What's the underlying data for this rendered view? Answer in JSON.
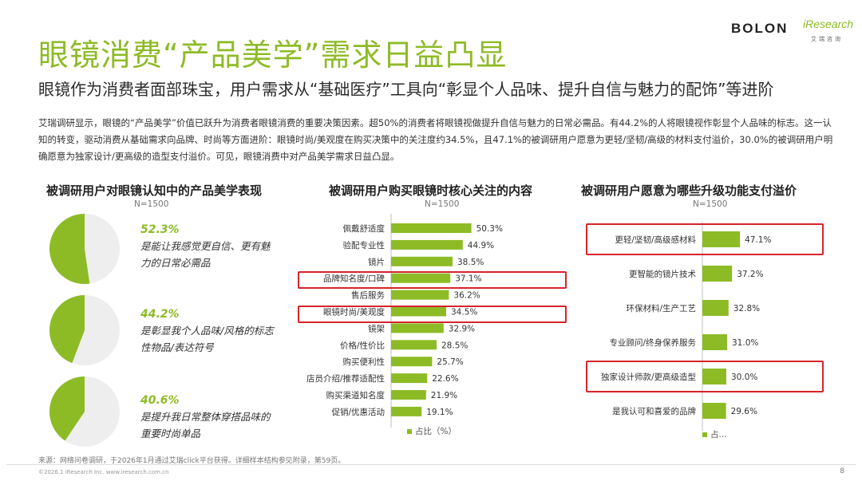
{
  "logo": {
    "brand": "BOLON",
    "partner": "iResearch",
    "partner_sub": "艾瑞咨询"
  },
  "title": "眼镜消费“产品美学”需求日益凸显",
  "subtitle": "眼镜作为消费者面部珠宝，用户需求从“基础医疗”工具向“彰显个人品味、提升自信与魅力的配饰”等进阶",
  "intro": "艾瑞调研显示，眼镜的“产品美学”价值已跃升为消费者眼镜消费的重要决策因素。超50%的消费者将眼镜视做提升自信与魅力的日常必需品。有44.2%的人将眼镜视作彰显个人品味的标志。这一认知的转变，驱动消费从基础需求向品牌、时尚等方面进阶：眼镜时尚/美观度在购买决策中的关注度约34.5%，且47.1%的被调研用户愿意为更轻/坚韧/高级的材料支付溢价，30.0%的被调研用户明确愿意为独家设计/更高级的造型支付溢价。可见，眼镜消费中对产品美学需求日益凸显。",
  "panel1": {
    "title": "被调研用户对眼镜认知中的产品美学表现",
    "n": "N=1500",
    "items": [
      {
        "pct": "52.3%",
        "value": 52.3,
        "desc": "是能让我感觉更自信、更有魅力的日常必需品"
      },
      {
        "pct": "44.2%",
        "value": 44.2,
        "desc": "是彰显我个人品味/风格的标志性物品/表达符号"
      },
      {
        "pct": "40.6%",
        "value": 40.6,
        "desc": "是提升我日常整体穿搭品味的重要时尚单品"
      }
    ]
  },
  "panel2": {
    "title": "被调研用户购买眼镜时核心关注的内容",
    "n": "N=1500",
    "legend": "占比（%）"
  },
  "panel3": {
    "title": "被调研用户愿意为哪些升级功能支付溢价",
    "n": "N=1500",
    "legend": "占..."
  },
  "chart_data": [
    {
      "type": "pie",
      "title": "被调研用户对眼镜认知中的产品美学表现",
      "note": "N=1500",
      "charts": [
        {
          "label": "是能让我感觉更自信、更有魅力的日常必需品",
          "value": 52.3
        },
        {
          "label": "是彰显我个人品味/风格的标志性物品/表达符号",
          "value": 44.2
        },
        {
          "label": "是提升我日常整体穿搭品味的重要时尚单品",
          "value": 40.6
        }
      ],
      "colors": {
        "highlight": "#8dbb26",
        "rest": "#eeeeee"
      }
    },
    {
      "type": "bar",
      "orientation": "horizontal",
      "title": "被调研用户购买眼镜时核心关注的内容",
      "note": "N=1500",
      "categories": [
        "佩戴舒适度",
        "验配专业性",
        "镜片",
        "品牌知名度/口碑",
        "售后服务",
        "眼镜时尚/美观度",
        "镜架",
        "价格/性价比",
        "购买便利性",
        "店员介绍/推荐适配性",
        "购买渠道知名度",
        "促销/优惠活动"
      ],
      "series": [
        {
          "name": "占比（%）",
          "values": [
            50.3,
            44.9,
            38.5,
            37.1,
            36.2,
            34.5,
            32.9,
            28.5,
            25.7,
            22.6,
            21.9,
            19.1
          ]
        }
      ],
      "value_labels": [
        "50.3%",
        "44.9%",
        "38.5%",
        "37.1%",
        "36.2%",
        "34.5%",
        "32.9%",
        "28.5%",
        "25.7%",
        "22.6%",
        "21.9%",
        "19.1%"
      ],
      "highlighted": [
        "品牌知名度/口碑",
        "眼镜时尚/美观度"
      ],
      "color": "#8dbb26"
    },
    {
      "type": "bar",
      "orientation": "horizontal",
      "title": "被调研用户愿意为哪些升级功能支付溢价",
      "note": "N=1500",
      "categories": [
        "更轻/坚韧/高级感材料",
        "更智能的镜片技术",
        "环保材料/生产工艺",
        "专业顾问/终身保养服务",
        "独家设计师款/更高级造型",
        "是我认可和喜爱的品牌"
      ],
      "series": [
        {
          "name": "占...",
          "values": [
            47.1,
            37.2,
            32.8,
            31.0,
            30.0,
            29.6
          ]
        }
      ],
      "value_labels": [
        "47.1%",
        "37.2%",
        "32.8%",
        "31.0%",
        "30.0%",
        "29.6%"
      ],
      "highlighted": [
        "更轻/坚韧/高级感材料",
        "独家设计师款/更高级造型"
      ],
      "color": "#8dbb26"
    }
  ],
  "footer": {
    "source": "来源：网络问卷调研，于2026年1月通过艾瑞click平台获得。详细样本结构参见附录，第59页。",
    "copyright": "©2026.1 iResearch Inc. www.iresearch.com.cn",
    "page": "8"
  },
  "colors": {
    "accent": "#8dbb26",
    "highlight_box": "#d6242b"
  }
}
